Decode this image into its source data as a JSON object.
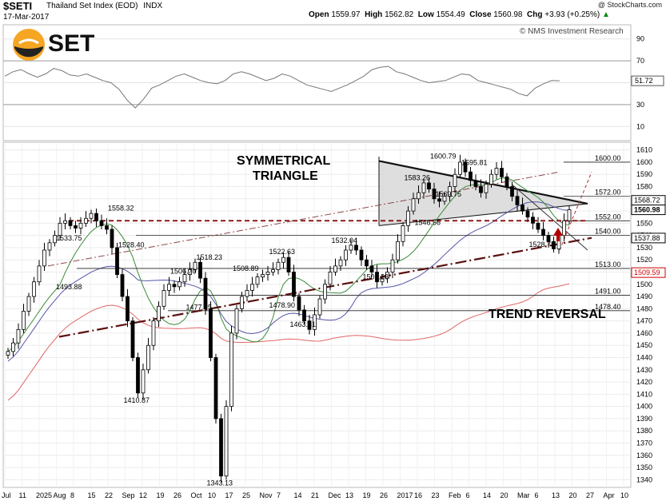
{
  "header": {
    "symbol": "$SETI",
    "description": "Thailand Set Index (EOD)",
    "exchange": "INDX",
    "date": "17-Mar-2017",
    "credit": "@ StockCharts.com",
    "nms_credit": "© NMS Investment Research",
    "open_label": "Open",
    "open": "1559.97",
    "high_label": "High",
    "high": "1562.82",
    "low_label": "Low",
    "low": "1554.49",
    "close_label": "Close",
    "close": "1560.98",
    "chg_label": "Chg",
    "chg": "+3.93 (+0.25%)",
    "chg_arrow": "▲"
  },
  "logo": {
    "text": "SET",
    "colors": {
      "ring": "#f5a623",
      "dark": "#222222"
    }
  },
  "chart_data": [
    {
      "type": "line",
      "panel": "RSI",
      "yticks": [
        "90",
        "70",
        "50",
        "30",
        "10"
      ],
      "ylim": [
        0,
        100
      ],
      "last_value_label": "51.72",
      "series": [
        {
          "values": [
            56,
            60,
            62,
            58,
            55,
            58,
            63,
            61,
            57,
            56,
            58,
            55,
            52,
            50,
            44,
            34,
            27,
            35,
            45,
            48,
            52,
            56,
            58,
            55,
            52,
            50,
            49,
            52,
            58,
            60,
            58,
            55,
            52,
            54,
            58,
            56,
            52,
            48,
            46,
            44,
            42,
            45,
            48,
            52,
            56,
            62,
            64,
            65,
            60,
            58,
            55,
            52,
            50,
            51,
            52,
            55,
            58,
            57,
            52,
            50,
            48,
            46,
            44,
            40,
            38,
            45,
            49,
            52,
            51.72
          ]
        }
      ]
    },
    {
      "type": "candlestick",
      "panel": "Price",
      "ylim": [
        1335,
        1615
      ],
      "yticks": [
        1610,
        1600,
        1590,
        1580,
        1570,
        1560,
        1550,
        1540,
        1530,
        1520,
        1510,
        1500,
        1490,
        1480,
        1470,
        1460,
        1450,
        1440,
        1430,
        1420,
        1410,
        1400,
        1390,
        1380,
        1370,
        1360,
        1350,
        1340
      ],
      "xticks": [
        "Jul",
        "11",
        "2025",
        "Aug",
        "8",
        "15",
        "22",
        "Sep",
        "12",
        "19",
        "26",
        "Oct",
        "10",
        "17",
        "25",
        "Nov",
        "7",
        "14",
        "21",
        "Dec",
        "13",
        "19",
        "26",
        "2017",
        "16",
        "23",
        "Feb",
        "6",
        "14",
        "20",
        "Mar",
        "6",
        "13",
        "20",
        "27",
        "Apr",
        "10"
      ],
      "close_series": [
        1445,
        1452,
        1463,
        1478,
        1490,
        1502,
        1515,
        1528,
        1534,
        1540,
        1550,
        1552,
        1548,
        1546,
        1550,
        1554,
        1558,
        1552,
        1548,
        1545,
        1530,
        1508,
        1490,
        1470,
        1440,
        1411,
        1430,
        1450,
        1470,
        1482,
        1495,
        1500,
        1498,
        1502,
        1508,
        1512,
        1518,
        1505,
        1480,
        1440,
        1390,
        1343,
        1400,
        1460,
        1480,
        1490,
        1495,
        1500,
        1506,
        1508,
        1510,
        1512,
        1518,
        1522,
        1510,
        1490,
        1479,
        1470,
        1463,
        1475,
        1488,
        1500,
        1510,
        1515,
        1520,
        1528,
        1532,
        1528,
        1520,
        1515,
        1510,
        1502,
        1505,
        1510,
        1520,
        1535,
        1548,
        1560,
        1570,
        1575,
        1583,
        1578,
        1570,
        1568,
        1572,
        1580,
        1590,
        1600,
        1592,
        1585,
        1580,
        1575,
        1582,
        1590,
        1595,
        1588,
        1580,
        1572,
        1565,
        1560,
        1555,
        1550,
        1545,
        1540,
        1535,
        1529,
        1540,
        1552,
        1561
      ],
      "annotations": [
        {
          "label": "1558.32",
          "x": 22,
          "y": 1558.32
        },
        {
          "label": "1533.75",
          "x": 12,
          "y": 1533.75
        },
        {
          "label": "1528.40",
          "x": 24,
          "y": 1528.4
        },
        {
          "label": "1493.88",
          "x": 12,
          "y": 1493.88
        },
        {
          "label": "1410.87",
          "x": 25,
          "y": 1410.87
        },
        {
          "label": "1506.70",
          "x": 34,
          "y": 1506.7
        },
        {
          "label": "1518.23",
          "x": 39,
          "y": 1518.23
        },
        {
          "label": "1477.25",
          "x": 37,
          "y": 1477.25
        },
        {
          "label": "1508.89",
          "x": 46,
          "y": 1508.89
        },
        {
          "label": "1343.13",
          "x": 41,
          "y": 1343.13
        },
        {
          "label": "1522.63",
          "x": 53,
          "y": 1522.63
        },
        {
          "label": "1478.90",
          "x": 53,
          "y": 1478.9
        },
        {
          "label": "1463.31",
          "x": 57,
          "y": 1463.31
        },
        {
          "label": "1532.04",
          "x": 65,
          "y": 1532.04
        },
        {
          "label": "1502.28",
          "x": 71,
          "y": 1502.28
        },
        {
          "label": "1546.56",
          "x": 81,
          "y": 1546.56
        },
        {
          "label": "1583.26",
          "x": 79,
          "y": 1583.26
        },
        {
          "label": "1600.79",
          "x": 84,
          "y": 1600.79
        },
        {
          "label": "1595.81",
          "x": 90,
          "y": 1595.81
        },
        {
          "label": "1569.75",
          "x": 85,
          "y": 1569.75
        },
        {
          "label": "1528.78",
          "x": 103,
          "y": 1528.78
        }
      ],
      "horizontal_levels": [
        {
          "label": "1600.00",
          "y": 1600
        },
        {
          "label": "1572.00",
          "y": 1572
        },
        {
          "label": "1552.00",
          "y": 1552
        },
        {
          "label": "1540.00",
          "y": 1540
        },
        {
          "label": "1513.00",
          "y": 1513
        },
        {
          "label": "1491.00",
          "y": 1491
        },
        {
          "label": "1478.40",
          "y": 1478.4
        }
      ],
      "right_tags": [
        {
          "label": "1568.72",
          "y": 1568.72,
          "color": "#000000"
        },
        {
          "label": "1560.98",
          "y": 1560.98,
          "color": "#000000"
        },
        {
          "label": "1537.88",
          "y": 1537.88,
          "color": "#000000"
        },
        {
          "label": "1509.59",
          "y": 1509.59,
          "color": "#cc0000"
        }
      ],
      "text_annotations": [
        "SYMMETRICAL",
        "TRIANGLE",
        "TREND REVERSAL"
      ],
      "moving_average_colors": {
        "ma_short": "#3a8a3a",
        "ma_mid": "#5555aa",
        "ma_long": "#e06666"
      },
      "trend_colors": {
        "resistance_dashed": "#8b1a1a",
        "trendline": "#5a0f0f"
      }
    }
  ]
}
